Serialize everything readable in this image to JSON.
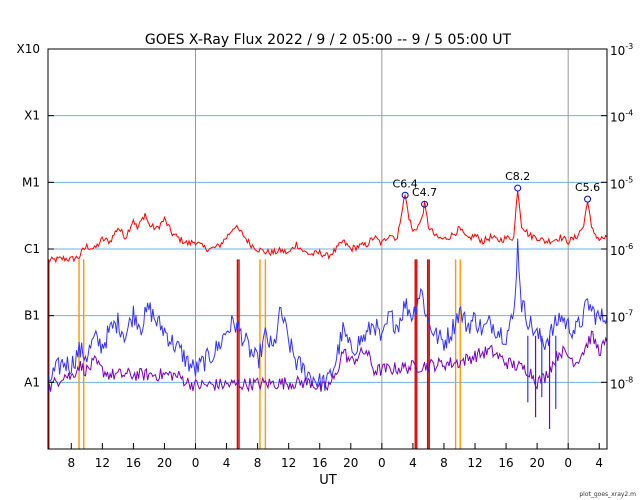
{
  "chart_data": {
    "type": "line",
    "title": "GOES X-Ray Flux   2022 /  9 /  2   05:00 --  9 /  5   05:00   UT",
    "xlabel": "UT",
    "credit": "plot_goes_xray2.m",
    "x_range_hours": [
      0,
      72
    ],
    "x_ticks": [
      {
        "h": 3,
        "label": "8"
      },
      {
        "h": 7,
        "label": "12"
      },
      {
        "h": 11,
        "label": "16"
      },
      {
        "h": 15,
        "label": "20"
      },
      {
        "h": 19,
        "label": "0"
      },
      {
        "h": 23,
        "label": "4"
      },
      {
        "h": 27,
        "label": "8"
      },
      {
        "h": 31,
        "label": "12"
      },
      {
        "h": 35,
        "label": "16"
      },
      {
        "h": 39,
        "label": "20"
      },
      {
        "h": 43,
        "label": "0"
      },
      {
        "h": 47,
        "label": "4"
      },
      {
        "h": 51,
        "label": "8"
      },
      {
        "h": 55,
        "label": "12"
      },
      {
        "h": 59,
        "label": "16"
      },
      {
        "h": 63,
        "label": "20"
      },
      {
        "h": 67,
        "label": "0"
      },
      {
        "h": 71,
        "label": "4"
      }
    ],
    "day_boundaries_h": [
      19,
      43,
      67
    ],
    "y_scale": "log",
    "y_range": [
      1e-09,
      0.001
    ],
    "left_axis_labels": [
      {
        "exp": -8,
        "label": "A1"
      },
      {
        "exp": -7,
        "label": "B1"
      },
      {
        "exp": -6,
        "label": "C1"
      },
      {
        "exp": -5,
        "label": "M1"
      },
      {
        "exp": -4,
        "label": "X1"
      },
      {
        "exp": -3,
        "label": "X10"
      }
    ],
    "right_axis_labels": [
      {
        "exp": -8,
        "base": "10",
        "sup": "-8"
      },
      {
        "exp": -7,
        "base": "10",
        "sup": "-7"
      },
      {
        "exp": -6,
        "base": "10",
        "sup": "-6"
      },
      {
        "exp": -5,
        "base": "10",
        "sup": "-5"
      },
      {
        "exp": -4,
        "base": "10",
        "sup": "-4"
      },
      {
        "exp": -3,
        "base": "10",
        "sup": "-3"
      }
    ],
    "flares": [
      {
        "label": "C6.4",
        "h": 46.0,
        "flux": 6.4e-06
      },
      {
        "label": "C4.7",
        "h": 48.5,
        "flux": 4.7e-06
      },
      {
        "label": "C8.2",
        "h": 60.5,
        "flux": 8.2e-06
      },
      {
        "label": "C5.6",
        "h": 69.5,
        "flux": 5.6e-06
      }
    ],
    "series": [
      {
        "id": "long",
        "color": "#ff0000",
        "points": [
          [
            0,
            6.6e-07
          ],
          [
            1,
            6.9e-07
          ],
          [
            2,
            7.2e-07
          ],
          [
            3,
            7e-07
          ],
          [
            4,
            7.6e-07
          ],
          [
            4.5,
            9.5e-07
          ],
          [
            5,
            1.1e-06
          ],
          [
            6,
            1e-06
          ],
          [
            7,
            1.4e-06
          ],
          [
            8,
            1.3e-06
          ],
          [
            9,
            2.1e-06
          ],
          [
            10,
            1.5e-06
          ],
          [
            11,
            2.8e-06
          ],
          [
            11.5,
            2e-06
          ],
          [
            12,
            2.6e-06
          ],
          [
            12.5,
            3.4e-06
          ],
          [
            13,
            2.3e-06
          ],
          [
            14,
            2e-06
          ],
          [
            15,
            2.8e-06
          ],
          [
            16,
            1.7e-06
          ],
          [
            17,
            1.4e-06
          ],
          [
            18,
            1.2e-06
          ],
          [
            19,
            1.3e-06
          ],
          [
            20,
            1.05e-06
          ],
          [
            21,
            1e-06
          ],
          [
            22,
            1.1e-06
          ],
          [
            23,
            1.5e-06
          ],
          [
            24,
            2.2e-06
          ],
          [
            25,
            1.7e-06
          ],
          [
            26,
            1.2e-06
          ],
          [
            27,
            1e-06
          ],
          [
            28,
            9e-07
          ],
          [
            29,
            8.8e-07
          ],
          [
            30,
            9.5e-07
          ],
          [
            31,
            8.6e-07
          ],
          [
            32,
            1.2e-06
          ],
          [
            33,
            9e-07
          ],
          [
            34,
            8.3e-07
          ],
          [
            35,
            8.8e-07
          ],
          [
            36,
            7.8e-07
          ],
          [
            37,
            9.5e-07
          ],
          [
            38,
            1.3e-06
          ],
          [
            39,
            1e-06
          ],
          [
            40,
            1.1e-06
          ],
          [
            41,
            1.15e-06
          ],
          [
            42,
            1.5e-06
          ],
          [
            43,
            1.2e-06
          ],
          [
            44,
            1.7e-06
          ],
          [
            45,
            1.4e-06
          ],
          [
            45.5,
            3.5e-06
          ],
          [
            46,
            6.4e-06
          ],
          [
            46.5,
            3e-06
          ],
          [
            47,
            1.8e-06
          ],
          [
            48,
            2.5e-06
          ],
          [
            48.5,
            4.7e-06
          ],
          [
            49,
            2.2e-06
          ],
          [
            50,
            1.5e-06
          ],
          [
            51,
            1.4e-06
          ],
          [
            52,
            1.6e-06
          ],
          [
            53,
            2e-06
          ],
          [
            54,
            1.4e-06
          ],
          [
            55,
            1.6e-06
          ],
          [
            56,
            1.3e-06
          ],
          [
            57,
            1.5e-06
          ],
          [
            58,
            1.35e-06
          ],
          [
            59,
            1.45e-06
          ],
          [
            60,
            1.5e-06
          ],
          [
            60.5,
            8.2e-06
          ],
          [
            61,
            2.3e-06
          ],
          [
            62,
            1.6e-06
          ],
          [
            63,
            1.5e-06
          ],
          [
            64,
            1.3e-06
          ],
          [
            65,
            1.35e-06
          ],
          [
            66,
            1.5e-06
          ],
          [
            67,
            1.3e-06
          ],
          [
            68,
            1.5e-06
          ],
          [
            69,
            2.2e-06
          ],
          [
            69.5,
            5.6e-06
          ],
          [
            70,
            2e-06
          ],
          [
            71,
            1.4e-06
          ],
          [
            72,
            1.5e-06
          ]
        ]
      },
      {
        "id": "short",
        "color": "#3333ff",
        "points": [
          [
            0,
            1e-08
          ],
          [
            1,
            1.5e-08
          ],
          [
            2,
            2e-08
          ],
          [
            3,
            1.8e-08
          ],
          [
            4,
            3e-08
          ],
          [
            5,
            2.5e-08
          ],
          [
            6,
            4.5e-08
          ],
          [
            7,
            3.5e-08
          ],
          [
            8,
            6e-08
          ],
          [
            9,
            8e-08
          ],
          [
            10,
            5e-08
          ],
          [
            11,
            1.1e-07
          ],
          [
            12,
            7e-08
          ],
          [
            13,
            1.3e-07
          ],
          [
            14,
            8e-08
          ],
          [
            15,
            6e-08
          ],
          [
            16,
            4e-08
          ],
          [
            17,
            3e-08
          ],
          [
            18,
            2e-08
          ],
          [
            19,
            1.5e-08
          ],
          [
            20,
            2e-08
          ],
          [
            21,
            2.5e-08
          ],
          [
            22,
            3.5e-08
          ],
          [
            23,
            6e-08
          ],
          [
            24,
            8e-08
          ],
          [
            25,
            5e-08
          ],
          [
            26,
            3e-08
          ],
          [
            27,
            2e-08
          ],
          [
            28,
            5e-08
          ],
          [
            29,
            3e-08
          ],
          [
            30,
            1.2e-07
          ],
          [
            31,
            4e-08
          ],
          [
            32,
            2e-08
          ],
          [
            33,
            1.5e-08
          ],
          [
            34,
            1.2e-08
          ],
          [
            35,
            1e-08
          ],
          [
            36,
            1e-08
          ],
          [
            37,
            2e-08
          ],
          [
            38,
            6e-08
          ],
          [
            39,
            3e-08
          ],
          [
            40,
            4e-08
          ],
          [
            41,
            5e-08
          ],
          [
            42,
            8e-08
          ],
          [
            43,
            4e-08
          ],
          [
            44,
            1e-07
          ],
          [
            45,
            7e-08
          ],
          [
            46,
            1.5e-07
          ],
          [
            47,
            1e-07
          ],
          [
            48,
            2.5e-07
          ],
          [
            49,
            8e-08
          ],
          [
            50,
            5e-08
          ],
          [
            51,
            4e-08
          ],
          [
            52,
            6e-08
          ],
          [
            53,
            1.2e-07
          ],
          [
            54,
            7e-08
          ],
          [
            55,
            9e-08
          ],
          [
            56,
            6e-08
          ],
          [
            57,
            8e-08
          ],
          [
            58,
            6e-08
          ],
          [
            59,
            5e-08
          ],
          [
            60,
            1e-07
          ],
          [
            60.5,
            1.2e-06
          ],
          [
            61,
            1.5e-07
          ],
          [
            62,
            8e-08
          ],
          [
            63,
            5e-08
          ],
          [
            64,
            4e-08
          ],
          [
            65,
            6e-08
          ],
          [
            66,
            1e-07
          ],
          [
            67,
            7e-08
          ],
          [
            68,
            6e-08
          ],
          [
            69,
            1e-07
          ],
          [
            69.5,
            1.6e-07
          ],
          [
            70,
            1.2e-07
          ],
          [
            71,
            9e-08
          ],
          [
            72,
            1e-07
          ]
        ]
      },
      {
        "id": "short-alt",
        "color": "#7700bb",
        "points": [
          [
            0,
            8e-09
          ],
          [
            1,
            1e-08
          ],
          [
            2,
            1.3e-08
          ],
          [
            3,
            1.2e-08
          ],
          [
            4,
            1.8e-08
          ],
          [
            5,
            1.5e-08
          ],
          [
            6,
            2e-08
          ],
          [
            7,
            1.5e-08
          ],
          [
            8,
            1.3e-08
          ],
          [
            16,
            1.3e-08
          ],
          [
            17,
            1.2e-08
          ],
          [
            18,
            1e-08
          ],
          [
            19,
            9e-09
          ],
          [
            34,
            1e-08
          ],
          [
            35,
            8e-09
          ],
          [
            36,
            8.5e-09
          ],
          [
            37,
            1.2e-08
          ],
          [
            38,
            3e-08
          ],
          [
            39,
            2e-08
          ],
          [
            40,
            2.5e-08
          ],
          [
            41,
            3e-08
          ],
          [
            42,
            1.5e-08
          ],
          [
            53,
            2e-08
          ],
          [
            55,
            2.5e-08
          ],
          [
            57,
            3e-08
          ],
          [
            59,
            2e-08
          ],
          [
            62,
            1.5e-08
          ],
          [
            63,
            1e-08
          ],
          [
            64,
            1.2e-08
          ],
          [
            66,
            3e-08
          ],
          [
            67,
            2.5e-08
          ],
          [
            68,
            2e-08
          ],
          [
            69,
            3e-08
          ],
          [
            70,
            5e-08
          ],
          [
            71,
            3e-08
          ],
          [
            72,
            4e-08
          ]
        ]
      }
    ],
    "gaps": [
      {
        "h": 4.0,
        "w": 0.6,
        "color": "#ff9900"
      },
      {
        "h": 27.3,
        "w": 0.7,
        "color": "#ff9900"
      },
      {
        "h": 52.5,
        "w": 0.6,
        "color": "#ff9900"
      },
      {
        "h": 24.4,
        "w": 0.2,
        "color": "#dd0000"
      },
      {
        "h": 47.3,
        "w": 0.2,
        "color": "#dd0000"
      },
      {
        "h": 48.9,
        "w": 0.2,
        "color": "#dd0000"
      },
      {
        "h": 0.1,
        "w": 0.15,
        "color": "#dd0000"
      }
    ],
    "dropouts": [
      {
        "h": 61.8,
        "low": 5e-09,
        "color": "#3333ff"
      },
      {
        "h": 62.8,
        "low": 3e-09,
        "color": "#7700bb"
      },
      {
        "h": 63.6,
        "low": 6e-09,
        "color": "#3333ff"
      },
      {
        "h": 64.6,
        "low": 2e-09,
        "color": "#7700bb"
      },
      {
        "h": 65.4,
        "low": 4e-09,
        "color": "#3333ff"
      }
    ]
  }
}
